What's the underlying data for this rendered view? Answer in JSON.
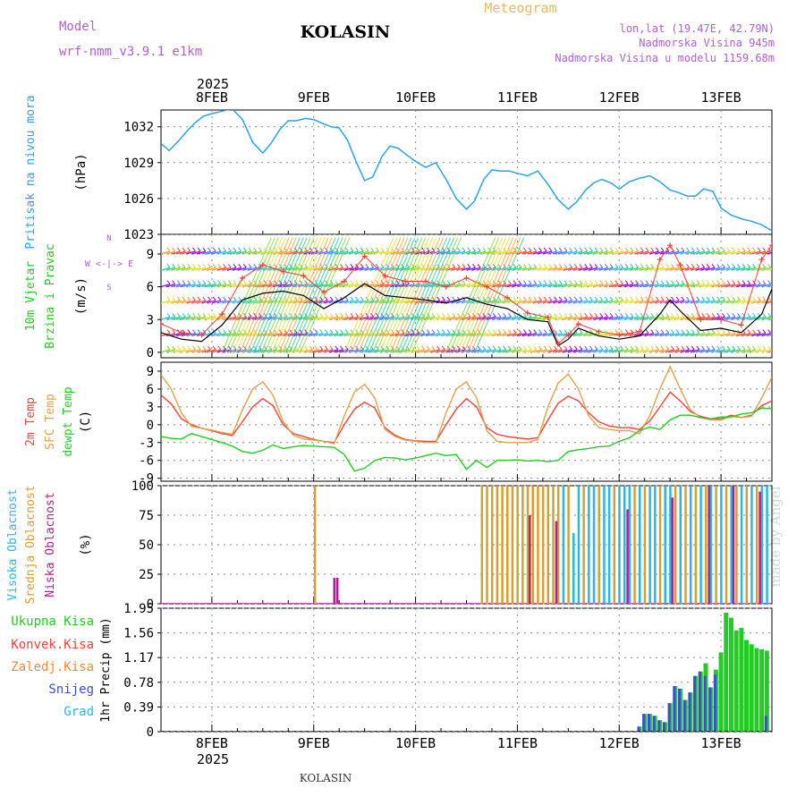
{
  "header": {
    "model_label": "Model",
    "model_name": "wrf-nmm_v3.9.1  e1km",
    "city": "KOLASIN",
    "product": "Meteogram",
    "coords": "lon,lat (19.47E, 42.79N)",
    "elevation": "Nadmorska Visina 945m",
    "model_elevation": "Nadmorska Visina u modelu 1159.68m"
  },
  "x_axis": {
    "year": "2025",
    "days": [
      "8FEB",
      "9FEB",
      "10FEB",
      "11FEB",
      "12FEB",
      "13FEB"
    ],
    "range_days": [
      7.5,
      13.5
    ]
  },
  "footer": {
    "city": "KOLASIN",
    "credit": "made by Angel"
  },
  "colors": {
    "pressure": "#29a3e6",
    "t2m": "#f0433a",
    "sfc": "#e0a24a",
    "dewpt": "#22cc22",
    "cloud_high": "#29b6e6",
    "cloud_mid": "#d6a030",
    "cloud_low": "#b0208a",
    "precip_total": "#22cc22",
    "precip_snow": "#3b4cd8",
    "wind_speed": "#000000",
    "wind_gust": "#e8403a"
  },
  "chart_data": [
    {
      "type": "line",
      "panel": "pressure",
      "ylabel_lines": [
        "Pritisak na nivou mora"
      ],
      "unit": "(hPa)",
      "ylim": [
        1023,
        1033.4
      ],
      "yticks": [
        1023,
        1026,
        1029,
        1032
      ],
      "series": [
        {
          "x": [
            7.5,
            7.58,
            7.67,
            7.75,
            7.83,
            7.92,
            8.0,
            8.1,
            8.2,
            8.3,
            8.4,
            8.5,
            8.58,
            8.67,
            8.75,
            8.83,
            8.92,
            9.0,
            9.08,
            9.17,
            9.25,
            9.33,
            9.42,
            9.5,
            9.58,
            9.67,
            9.75,
            9.83,
            9.92,
            10.0,
            10.1,
            10.2,
            10.3,
            10.4,
            10.5,
            10.58,
            10.67,
            10.75,
            10.83,
            10.92,
            11.0,
            11.1,
            11.2,
            11.3,
            11.4,
            11.5,
            11.58,
            11.67,
            11.75,
            11.83,
            11.92,
            12.0,
            12.1,
            12.2,
            12.3,
            12.4,
            12.5,
            12.58,
            12.67,
            12.75,
            12.83,
            12.92,
            13.0,
            13.1,
            13.2,
            13.3,
            13.4,
            13.5
          ],
          "y": [
            1030.6,
            1030.0,
            1030.8,
            1031.6,
            1032.3,
            1032.9,
            1033.1,
            1033.3,
            1033.5,
            1032.6,
            1030.7,
            1029.8,
            1030.6,
            1031.8,
            1032.5,
            1032.5,
            1032.7,
            1032.6,
            1032.3,
            1032.0,
            1031.9,
            1030.9,
            1029.0,
            1027.5,
            1027.8,
            1029.5,
            1030.4,
            1030.2,
            1029.6,
            1029.1,
            1028.6,
            1029.0,
            1027.6,
            1026.0,
            1025.1,
            1025.8,
            1027.6,
            1028.4,
            1028.3,
            1028.3,
            1028.1,
            1027.9,
            1028.3,
            1027.2,
            1025.9,
            1025.1,
            1025.7,
            1026.7,
            1027.3,
            1027.6,
            1027.3,
            1026.8,
            1027.4,
            1027.7,
            1027.9,
            1027.4,
            1026.7,
            1026.5,
            1026.2,
            1026.2,
            1026.8,
            1026.6,
            1025.2,
            1024.6,
            1024.3,
            1024.1,
            1023.8,
            1023.3
          ]
        }
      ]
    },
    {
      "type": "line",
      "panel": "wind",
      "ylabel_lines": [
        "10m Vjetar",
        "Brzina i Pravac"
      ],
      "unit": "(m/s)",
      "compass_legend": "W <-|-> E",
      "compass_ns": [
        "N",
        "S"
      ],
      "ylim": [
        -0.5,
        10.8
      ],
      "yticks": [
        0,
        3,
        6,
        9
      ],
      "barb_levels": [
        0,
        1.5,
        3,
        4.5,
        6,
        7.5,
        9,
        10.8
      ],
      "series": [
        {
          "name": "speed",
          "x": [
            7.5,
            7.7,
            7.9,
            8.1,
            8.3,
            8.5,
            8.7,
            8.9,
            9.1,
            9.3,
            9.5,
            9.7,
            9.9,
            10.1,
            10.3,
            10.5,
            10.7,
            10.9,
            11.1,
            11.3,
            11.4,
            11.5,
            11.6,
            11.8,
            12.0,
            12.2,
            12.4,
            12.5,
            12.6,
            12.8,
            13.0,
            13.2,
            13.4,
            13.5
          ],
          "y": [
            1.8,
            1.2,
            1.0,
            2.5,
            4.8,
            5.4,
            5.6,
            5.2,
            4.0,
            5.0,
            6.3,
            5.2,
            5.0,
            4.8,
            4.5,
            5.0,
            4.4,
            4.0,
            3.0,
            2.8,
            0.6,
            1.2,
            2.2,
            1.5,
            1.2,
            1.5,
            3.5,
            4.8,
            3.8,
            2.0,
            2.2,
            1.8,
            3.5,
            5.8
          ]
        },
        {
          "name": "gust",
          "x": [
            7.5,
            7.7,
            7.9,
            8.1,
            8.3,
            8.5,
            8.7,
            8.9,
            9.1,
            9.3,
            9.5,
            9.7,
            9.9,
            10.1,
            10.3,
            10.5,
            10.7,
            10.9,
            11.1,
            11.3,
            11.4,
            11.5,
            11.6,
            11.8,
            12.0,
            12.2,
            12.4,
            12.5,
            12.6,
            12.8,
            13.0,
            13.2,
            13.4,
            13.5
          ],
          "y": [
            2.6,
            1.8,
            1.6,
            3.5,
            6.8,
            8.0,
            7.4,
            7.0,
            5.5,
            6.5,
            8.8,
            7.0,
            6.5,
            6.5,
            6.0,
            6.8,
            6.0,
            5.0,
            3.6,
            3.2,
            0.8,
            1.6,
            2.6,
            1.9,
            1.6,
            1.9,
            8.5,
            9.8,
            8.0,
            3.0,
            3.0,
            2.5,
            8.5,
            9.8
          ]
        }
      ]
    },
    {
      "type": "line",
      "panel": "temperature",
      "ylabel_lines": [
        "2m Temp",
        "SFC Temp",
        "dewpt Temp"
      ],
      "unit": "(C)",
      "ylim": [
        -9.5,
        10.5
      ],
      "yticks": [
        -9,
        -6,
        -3,
        0,
        3,
        6,
        9
      ],
      "series": [
        {
          "name": "2m Temp",
          "x": [
            7.5,
            7.6,
            7.7,
            7.8,
            7.9,
            8.0,
            8.1,
            8.2,
            8.3,
            8.4,
            8.5,
            8.6,
            8.7,
            8.8,
            8.9,
            9.0,
            9.1,
            9.2,
            9.3,
            9.4,
            9.5,
            9.6,
            9.7,
            9.8,
            9.9,
            10.0,
            10.1,
            10.2,
            10.3,
            10.4,
            10.5,
            10.6,
            10.7,
            10.8,
            10.9,
            11.0,
            11.1,
            11.2,
            11.3,
            11.4,
            11.5,
            11.6,
            11.7,
            11.8,
            11.9,
            12.0,
            12.1,
            12.2,
            12.3,
            12.4,
            12.5,
            12.6,
            12.7,
            12.8,
            12.9,
            13.0,
            13.1,
            13.2,
            13.3,
            13.4,
            13.5
          ],
          "y": [
            5.0,
            3.5,
            1.0,
            0.0,
            -0.6,
            -1.0,
            -1.5,
            -1.8,
            0.5,
            3.0,
            4.4,
            3.2,
            0.0,
            -1.5,
            -2.0,
            -2.5,
            -2.8,
            -3.0,
            0.0,
            2.6,
            3.8,
            2.8,
            -0.5,
            -1.8,
            -2.5,
            -2.7,
            -2.8,
            -2.8,
            0.0,
            2.6,
            4.4,
            3.0,
            -0.5,
            -1.6,
            -2.0,
            -2.2,
            -2.4,
            -2.2,
            0.8,
            3.6,
            4.8,
            4.0,
            2.0,
            0.5,
            -0.2,
            -0.5,
            -0.5,
            -0.8,
            0.6,
            3.0,
            5.5,
            4.0,
            2.2,
            1.4,
            1.0,
            1.0,
            1.6,
            1.2,
            1.6,
            3.2,
            4.0
          ]
        },
        {
          "name": "SFC Temp",
          "x": [
            7.5,
            7.6,
            7.7,
            7.8,
            7.9,
            8.0,
            8.1,
            8.2,
            8.3,
            8.4,
            8.5,
            8.6,
            8.7,
            8.8,
            8.9,
            9.0,
            9.1,
            9.2,
            9.3,
            9.4,
            9.5,
            9.6,
            9.7,
            9.8,
            9.9,
            10.0,
            10.1,
            10.2,
            10.3,
            10.4,
            10.5,
            10.6,
            10.7,
            10.8,
            10.9,
            11.0,
            11.1,
            11.2,
            11.3,
            11.4,
            11.5,
            11.6,
            11.7,
            11.8,
            11.9,
            12.0,
            12.1,
            12.2,
            12.3,
            12.4,
            12.5,
            12.6,
            12.7,
            12.8,
            12.9,
            13.0,
            13.1,
            13.2,
            13.3,
            13.4,
            13.5
          ],
          "y": [
            8.4,
            6.0,
            2.0,
            -0.3,
            -0.6,
            -0.9,
            -1.3,
            -1.6,
            2.5,
            6.0,
            7.2,
            5.0,
            0.5,
            -1.8,
            -2.4,
            -2.6,
            -2.8,
            -3.2,
            1.5,
            5.5,
            6.8,
            4.5,
            -0.8,
            -2.0,
            -2.6,
            -2.8,
            -3.0,
            -3.0,
            2.0,
            6.0,
            7.2,
            4.5,
            -1.0,
            -2.8,
            -3.0,
            -3.0,
            -3.0,
            -2.5,
            3.0,
            7.0,
            8.5,
            6.0,
            1.5,
            -0.5,
            -0.8,
            -1.0,
            -1.0,
            -1.5,
            1.5,
            6.0,
            9.8,
            6.0,
            2.5,
            1.2,
            0.8,
            0.8,
            1.4,
            1.2,
            1.4,
            4.5,
            8.0
          ]
        },
        {
          "name": "dewpt Temp",
          "x": [
            7.5,
            7.6,
            7.7,
            7.8,
            7.9,
            8.0,
            8.1,
            8.2,
            8.3,
            8.4,
            8.5,
            8.6,
            8.7,
            8.8,
            8.9,
            9.0,
            9.1,
            9.2,
            9.3,
            9.4,
            9.5,
            9.6,
            9.7,
            9.8,
            9.9,
            10.0,
            10.1,
            10.2,
            10.3,
            10.4,
            10.5,
            10.6,
            10.7,
            10.8,
            10.9,
            11.0,
            11.1,
            11.2,
            11.3,
            11.4,
            11.5,
            11.6,
            11.7,
            11.8,
            11.9,
            12.0,
            12.1,
            12.2,
            12.3,
            12.4,
            12.5,
            12.6,
            12.7,
            12.8,
            12.9,
            13.0,
            13.1,
            13.2,
            13.3,
            13.4,
            13.5
          ],
          "y": [
            -2.0,
            -2.3,
            -2.4,
            -1.5,
            -2.0,
            -2.5,
            -3.0,
            -3.6,
            -4.5,
            -4.8,
            -4.3,
            -3.4,
            -4.0,
            -3.7,
            -3.5,
            -3.6,
            -3.7,
            -3.8,
            -5.0,
            -7.8,
            -7.3,
            -6.0,
            -5.5,
            -5.6,
            -5.9,
            -5.6,
            -5.2,
            -4.8,
            -5.2,
            -5.0,
            -7.5,
            -6.0,
            -7.2,
            -6.0,
            -6.0,
            -5.9,
            -6.1,
            -6.0,
            -6.2,
            -6.0,
            -4.5,
            -4.2,
            -4.0,
            -3.7,
            -3.6,
            -2.8,
            -2.2,
            -1.0,
            -0.4,
            -0.8,
            0.8,
            1.6,
            1.6,
            1.2,
            1.0,
            1.3,
            1.3,
            1.8,
            2.0,
            2.8,
            2.7
          ]
        }
      ]
    },
    {
      "type": "bar",
      "panel": "clouds",
      "ylabel_lines": [
        "Visoka Oblacnost",
        "Srednja Oblacnost",
        "Niska Oblacnost"
      ],
      "unit": "(%)",
      "ylim": [
        0,
        100
      ],
      "yticks": [
        0,
        25,
        50,
        75,
        100
      ],
      "series": [
        {
          "name": "Visoka Oblacnost",
          "x": [
            11.45,
            11.55,
            11.6,
            11.7,
            11.75,
            11.85,
            11.9,
            12.0,
            12.05,
            12.1,
            12.2,
            12.3,
            12.35,
            12.45,
            12.5,
            12.6,
            12.7,
            12.8,
            12.9,
            13.0,
            13.1,
            13.2,
            13.3,
            13.4,
            13.45
          ],
          "values": [
            100,
            60,
            100,
            100,
            100,
            100,
            100,
            100,
            100,
            100,
            100,
            100,
            100,
            100,
            100,
            100,
            100,
            100,
            100,
            100,
            100,
            100,
            100,
            100,
            100
          ]
        },
        {
          "name": "Srednja Oblacnost",
          "x": [
            9.01,
            10.65,
            10.7,
            10.75,
            10.8,
            10.85,
            10.9,
            10.95,
            11.0,
            11.05,
            11.1,
            11.15,
            11.2,
            11.25,
            11.3,
            11.35,
            11.4,
            11.5,
            11.65,
            11.8,
            11.95,
            12.15,
            12.25,
            12.4,
            12.55,
            12.65,
            12.75,
            12.85,
            12.95,
            13.05,
            13.15,
            13.25,
            13.35
          ],
          "values": [
            100,
            100,
            100,
            100,
            100,
            100,
            100,
            100,
            100,
            100,
            100,
            100,
            100,
            100,
            100,
            100,
            100,
            100,
            100,
            100,
            100,
            100,
            100,
            100,
            100,
            100,
            100,
            100,
            100,
            100,
            100,
            100,
            100
          ]
        },
        {
          "name": "Niska Oblacnost",
          "x": [
            9.2,
            9.23,
            11.12,
            11.38,
            12.08,
            12.52,
            12.88,
            13.12,
            13.38
          ],
          "values": [
            22,
            22,
            75,
            70,
            80,
            90,
            100,
            100,
            95
          ]
        }
      ]
    },
    {
      "type": "bar",
      "panel": "precip",
      "ylabel_lines": [
        "1hr Precip (mm)"
      ],
      "legend": [
        "Ukupna Kisa",
        "Konvek.Kisa",
        "Zaledj.Kisa",
        "Snijeg",
        "Grad"
      ],
      "legend_colors": [
        "#22cc22",
        "#f0433a",
        "#f08a3a",
        "#3b4cd8",
        "#29b6e6"
      ],
      "ylim": [
        0,
        1.95
      ],
      "yticks": [
        0,
        0.39,
        0.78,
        1.17,
        1.56,
        1.95
      ],
      "x": [
        12.2,
        12.25,
        12.3,
        12.35,
        12.4,
        12.45,
        12.5,
        12.55,
        12.6,
        12.65,
        12.7,
        12.75,
        12.8,
        12.85,
        12.9,
        12.95,
        13.0,
        13.05,
        13.1,
        13.15,
        13.2,
        13.25,
        13.3,
        13.35,
        13.4,
        13.45
      ],
      "total": [
        0.08,
        0.28,
        0.28,
        0.25,
        0.18,
        0.15,
        0.45,
        0.72,
        0.68,
        0.5,
        0.62,
        0.88,
        0.95,
        1.08,
        0.7,
        0.98,
        1.25,
        1.88,
        1.8,
        1.6,
        1.64,
        1.45,
        1.38,
        1.32,
        1.3,
        1.28
      ],
      "snow": [
        0.08,
        0.28,
        0.28,
        0.25,
        0.18,
        0.15,
        0.45,
        0.72,
        0.68,
        0.5,
        0.62,
        0.88,
        0.95,
        0.88,
        0.7,
        0.9,
        0.0,
        0.0,
        0.0,
        0.0,
        0.0,
        0.0,
        0.0,
        0.0,
        0.0,
        0.25
      ]
    }
  ]
}
